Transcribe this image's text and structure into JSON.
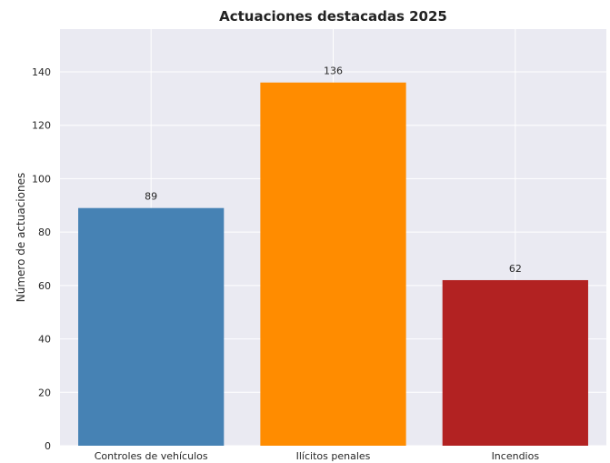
{
  "chart_data": {
    "type": "bar",
    "title": "Actuaciones destacadas 2025",
    "xlabel": "",
    "ylabel": "Número de actuaciones",
    "categories": [
      "Controles de vehículos",
      "Ilícitos penales",
      "Incendios"
    ],
    "values": [
      89,
      136,
      62
    ],
    "colors": [
      "#4682B4",
      "#FF8C00",
      "#B22222"
    ],
    "ylim": [
      0,
      156
    ],
    "yticks": [
      0,
      20,
      40,
      60,
      80,
      100,
      120,
      140
    ],
    "grid": true,
    "plot_background": "#EAEAF2",
    "grid_color": "#FFFFFF"
  }
}
